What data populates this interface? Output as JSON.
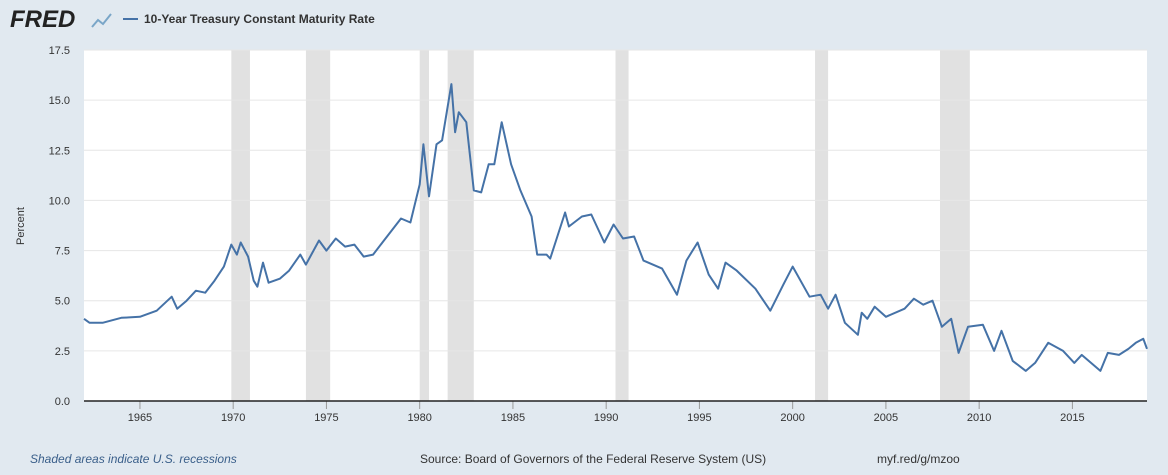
{
  "header": {
    "logo": "FRED"
  },
  "footer": {
    "note": "Shaded areas indicate U.S. recessions",
    "source": "Source: Board of Governors of the Federal Reserve System (US)",
    "link": "myf.red/g/mzoo"
  },
  "chart_data": {
    "type": "line",
    "title": "10-Year Treasury Constant Maturity Rate",
    "y_label": "Percent",
    "x": [
      1962,
      1962.3,
      1963,
      1964,
      1965,
      1965.9,
      1966.7,
      1967,
      1967.5,
      1968,
      1968.5,
      1969,
      1969.5,
      1969.9,
      1970.2,
      1970.4,
      1970.8,
      1971.1,
      1971.3,
      1971.6,
      1971.9,
      1972.5,
      1973,
      1973.6,
      1973.9,
      1974.6,
      1975,
      1975.5,
      1976,
      1976.5,
      1977,
      1977.5,
      1978,
      1978.5,
      1979,
      1979.5,
      1980,
      1980.2,
      1980.5,
      1980.9,
      1981.2,
      1981.7,
      1981.9,
      1982.1,
      1982.5,
      1982.9,
      1983.3,
      1983.7,
      1984,
      1984.4,
      1984.9,
      1985.4,
      1986,
      1986.3,
      1986.8,
      1987,
      1987.8,
      1988,
      1988.7,
      1989.2,
      1989.9,
      1990.4,
      1990.9,
      1991.5,
      1992,
      1993,
      1993.8,
      1994.3,
      1994.9,
      1995.5,
      1996,
      1996.4,
      1997,
      1998,
      1998.8,
      1999.5,
      2000,
      2000.9,
      2001.5,
      2001.9,
      2002.3,
      2002.8,
      2003.5,
      2003.7,
      2004,
      2004.4,
      2005,
      2006,
      2006.5,
      2007,
      2007.5,
      2008,
      2008.5,
      2008.9,
      2009.4,
      2010.2,
      2010.8,
      2011.2,
      2011.8,
      2012.5,
      2013,
      2013.7,
      2014.5,
      2015.1,
      2015.5,
      2016.5,
      2016.9,
      2017.5,
      2018,
      2018.4,
      2018.8,
      2019
    ],
    "series": [
      {
        "name": "10-Year Treasury Constant Maturity Rate",
        "color": "#4572a7",
        "values": [
          4.1,
          3.9,
          3.9,
          4.15,
          4.2,
          4.5,
          5.2,
          4.6,
          5.0,
          5.5,
          5.4,
          6.0,
          6.7,
          7.8,
          7.3,
          7.9,
          7.2,
          6.0,
          5.7,
          6.9,
          5.9,
          6.1,
          6.5,
          7.3,
          6.8,
          8.0,
          7.5,
          8.1,
          7.7,
          7.8,
          7.2,
          7.3,
          7.9,
          8.5,
          9.1,
          8.9,
          10.8,
          12.8,
          10.2,
          12.8,
          13.0,
          15.8,
          13.4,
          14.4,
          13.9,
          10.5,
          10.4,
          11.8,
          11.8,
          13.9,
          11.8,
          10.5,
          9.2,
          7.3,
          7.3,
          7.1,
          9.4,
          8.7,
          9.2,
          9.3,
          7.9,
          8.8,
          8.1,
          8.2,
          7.0,
          6.6,
          5.3,
          7.0,
          7.9,
          6.3,
          5.6,
          6.9,
          6.5,
          5.6,
          4.5,
          5.8,
          6.7,
          5.2,
          5.3,
          4.6,
          5.3,
          3.9,
          3.3,
          4.4,
          4.1,
          4.7,
          4.2,
          4.6,
          5.1,
          4.8,
          5.0,
          3.7,
          4.1,
          2.4,
          3.7,
          3.8,
          2.5,
          3.5,
          2.0,
          1.5,
          1.9,
          2.9,
          2.5,
          1.9,
          2.3,
          1.5,
          2.4,
          2.3,
          2.6,
          2.9,
          3.1,
          2.6
        ]
      }
    ],
    "recessions": [
      [
        1969.9,
        1970.9
      ],
      [
        1973.9,
        1975.2
      ],
      [
        1980.0,
        1980.5
      ],
      [
        1981.5,
        1982.9
      ],
      [
        1990.5,
        1991.2
      ],
      [
        2001.2,
        2001.9
      ],
      [
        2007.9,
        2009.5
      ]
    ],
    "recession_color": "#e1e1e1",
    "xlim": [
      1962,
      2019
    ],
    "xticks": [
      1965,
      1970,
      1975,
      1980,
      1985,
      1990,
      1995,
      2000,
      2005,
      2010,
      2015
    ],
    "ylim": [
      0,
      17.5
    ],
    "yticks": [
      {
        "value": 0,
        "label": "0.0"
      },
      2.5,
      {
        "value": 5,
        "label": "5.0"
      },
      7.5,
      {
        "value": 10,
        "label": "10.0"
      },
      12.5,
      {
        "value": 15,
        "label": "15.0"
      },
      17.5
    ],
    "grid": true
  }
}
